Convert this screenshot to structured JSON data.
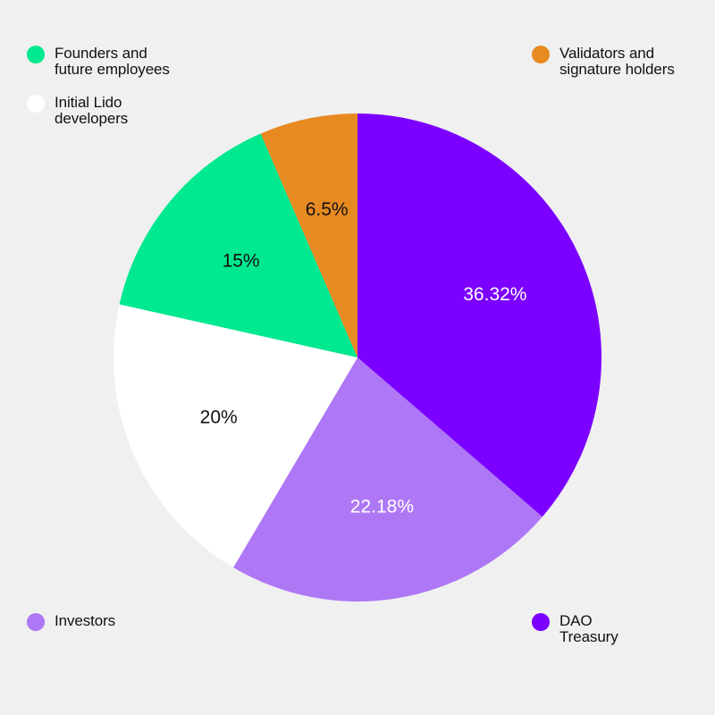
{
  "chart_data": {
    "type": "pie",
    "start_angle_deg": 0,
    "direction": "clockwise",
    "slices": [
      {
        "label": "DAO\nTreasury",
        "value": 36.32,
        "value_label": "36.32%",
        "color": "#7b00ff",
        "label_color": "#ffffff"
      },
      {
        "label": "Investors",
        "value": 22.18,
        "value_label": "22.18%",
        "color": "#ae77f5",
        "label_color": "#ffffff"
      },
      {
        "label": "Initial Lido\ndevelopers",
        "value": 20,
        "value_label": "20%",
        "color": "#ffffff",
        "label_color": "#111111"
      },
      {
        "label": "Founders and\nfuture employees",
        "value": 15,
        "value_label": "15%",
        "color": "#00e890",
        "label_color": "#111111"
      },
      {
        "label": "Validators and\nsignature holders",
        "value": 6.5,
        "value_label": "6.5%",
        "color": "#e88a22",
        "label_color": "#111111"
      }
    ],
    "legend": {
      "placement": "corners",
      "entries": [
        {
          "name": "Founders and\nfuture employees",
          "color": "#00e890"
        },
        {
          "name": "Initial Lido\ndevelopers",
          "color": "#ffffff"
        },
        {
          "name": "Validators and\nsignature holders",
          "color": "#e88a22"
        },
        {
          "name": "Investors",
          "color": "#ae77f5"
        },
        {
          "name": "DAO\nTreasury",
          "color": "#7b00ff"
        }
      ]
    }
  },
  "background_color": "#f0f0f0"
}
